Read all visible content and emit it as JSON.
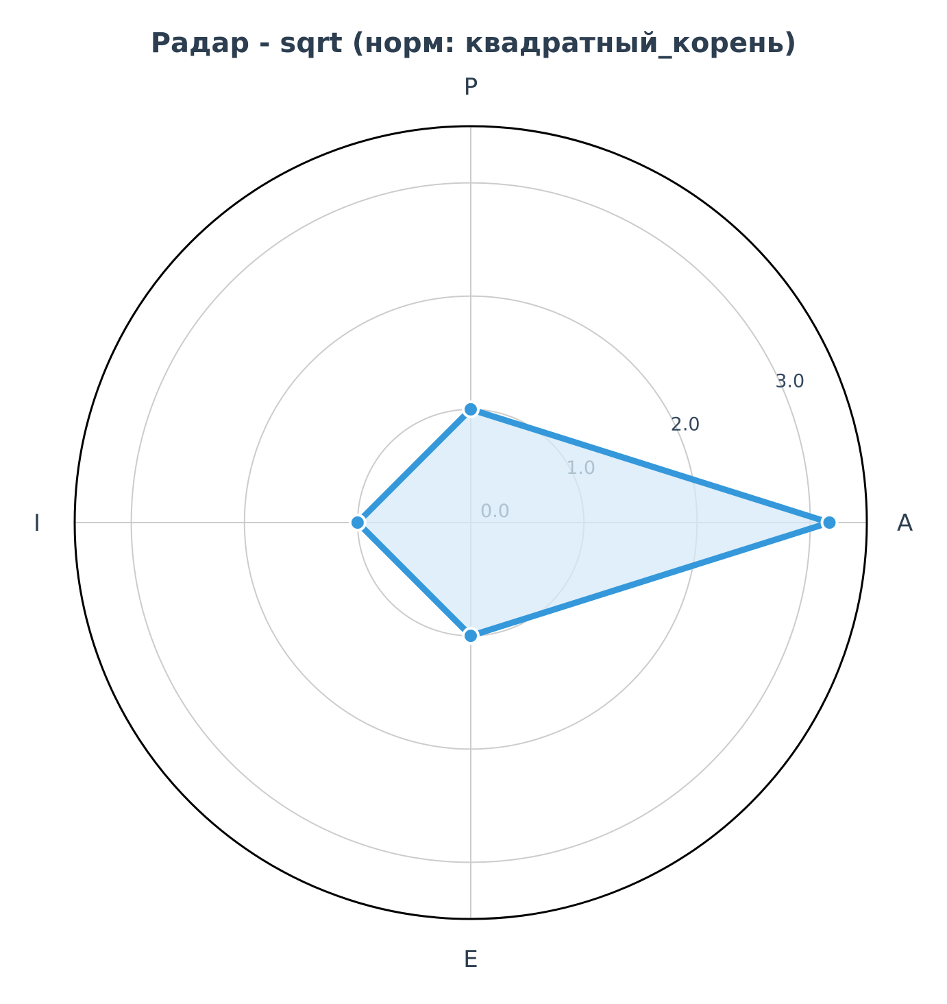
{
  "chart_data": {
    "type": "radar",
    "title": "Радар - sqrt (норм: квадратный_корень)",
    "categories": [
      "A",
      "P",
      "I",
      "E"
    ],
    "series": [
      {
        "values": [
          3.17,
          1.0,
          1.0,
          1.0
        ]
      }
    ],
    "rlim": [
      0,
      3.5
    ],
    "rticks": [
      0,
      1,
      2,
      3
    ],
    "rtick_labels": [
      "0.0",
      "1.0",
      "2.0",
      "3.0"
    ],
    "grid": true,
    "colors": {
      "line": "#3498db",
      "fill": "#d6e9f8",
      "grid": "#cccccc",
      "frame": "#000000",
      "text": "#2c3e50"
    }
  }
}
